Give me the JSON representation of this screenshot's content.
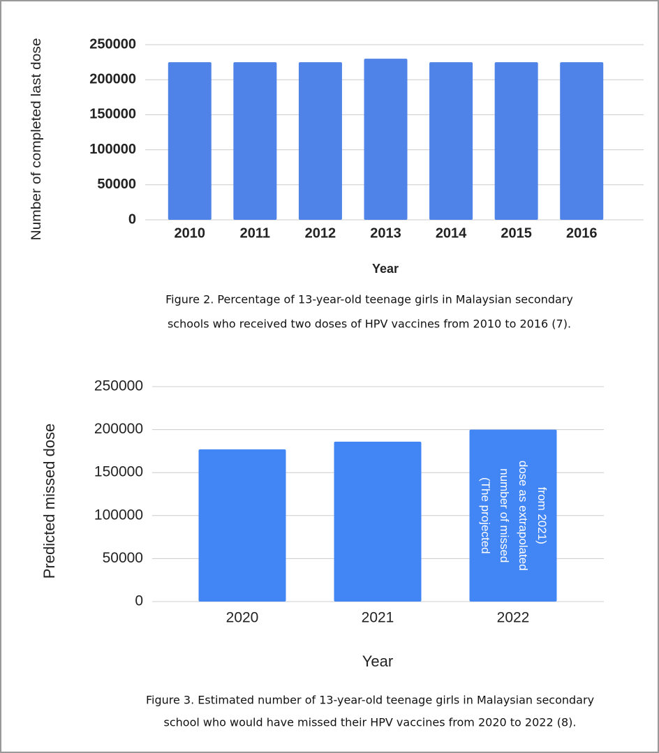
{
  "chart_data": [
    {
      "type": "bar",
      "title": null,
      "ylabel": "Number of completed last dose",
      "xlabel": "Year",
      "categories": [
        "2010",
        "2011",
        "2012",
        "2013",
        "2014",
        "2015",
        "2016"
      ],
      "values": [
        225000,
        225000,
        225000,
        230000,
        225000,
        225000,
        225000
      ],
      "color": "#5083e8",
      "ylim": [
        0,
        250000
      ],
      "yticks": [
        0,
        50000,
        100000,
        150000,
        200000,
        250000
      ],
      "grid": true,
      "caption": [
        "Figure 2. Percentage of 13-year-old teenage girls in Malaysian secondary",
        "schools who received two doses of HPV vaccines from 2010 to 2016 (7)."
      ]
    },
    {
      "type": "bar",
      "title": null,
      "ylabel": "Predicted missed dose",
      "xlabel": "Year",
      "categories": [
        "2020",
        "2021",
        "2022"
      ],
      "values": [
        177000,
        186000,
        200000
      ],
      "color": "#4285f4",
      "ylim": [
        0,
        250000
      ],
      "yticks": [
        0,
        50000,
        100000,
        150000,
        200000,
        250000
      ],
      "grid": true,
      "annotation": [
        "(The projected",
        "number of missed",
        "dose as extrapolated",
        "from 2021)"
      ],
      "caption": [
        "Figure 3. Estimated number of 13-year-old teenage girls in Malaysian secondary",
        "school who would have missed their HPV vaccines from 2020 to 2022 (8)."
      ]
    }
  ]
}
